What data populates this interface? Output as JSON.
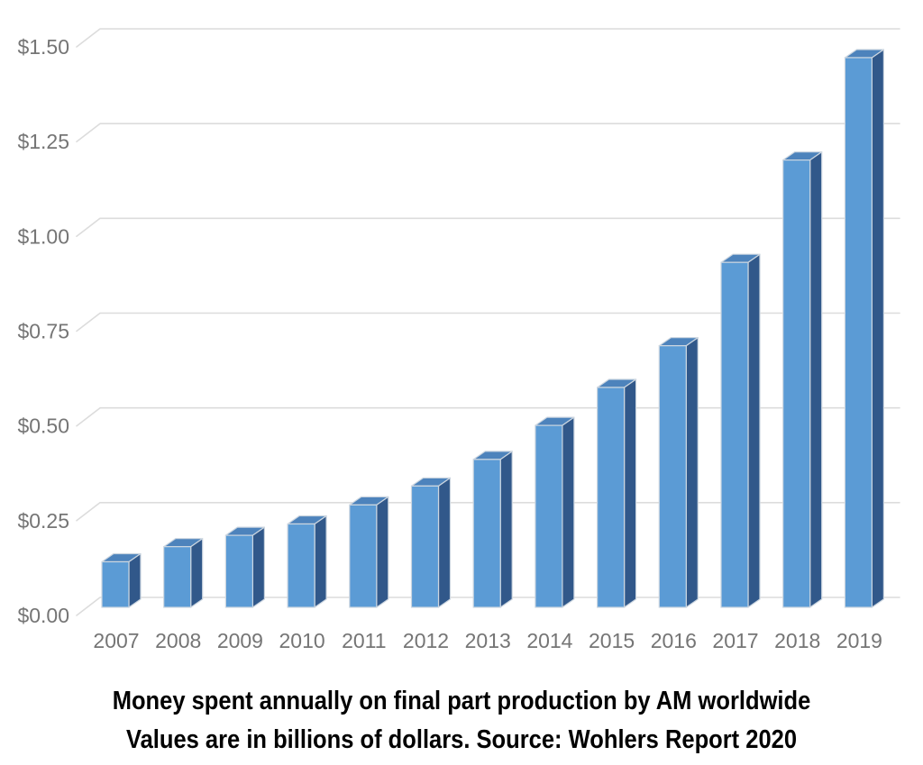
{
  "page": {
    "background": "#ffffff"
  },
  "caption": {
    "line1": "Money spent annually on final part production by AM worldwide",
    "line2": "Values are in billions of dollars. Source: Wohlers Report 2020"
  },
  "chart_data": {
    "type": "bar",
    "style": "3d-column",
    "title": "",
    "xlabel": "",
    "ylabel": "",
    "categories": [
      "2007",
      "2008",
      "2009",
      "2010",
      "2011",
      "2012",
      "2013",
      "2014",
      "2015",
      "2016",
      "2017",
      "2018",
      "2019"
    ],
    "values": [
      0.12,
      0.16,
      0.19,
      0.22,
      0.27,
      0.32,
      0.39,
      0.48,
      0.58,
      0.69,
      0.91,
      1.18,
      1.45
    ],
    "y_ticks": [
      "$0.00",
      "$0.25",
      "$0.50",
      "$0.75",
      "$1.00",
      "$1.25",
      "$1.50"
    ],
    "y_tick_values": [
      0,
      0.25,
      0.5,
      0.75,
      1,
      1.25,
      1.5
    ],
    "ylim": [
      0,
      1.5
    ],
    "grid": true,
    "legend": "none",
    "colors": {
      "bar_front": "#5b9bd5",
      "bar_top": "#4d83bc",
      "bar_side": "#31588a",
      "bar_edge": "#ccd6e0",
      "gridline": "#dcdcdc",
      "tick_label": "#757575",
      "caption_text": "#000000"
    }
  }
}
